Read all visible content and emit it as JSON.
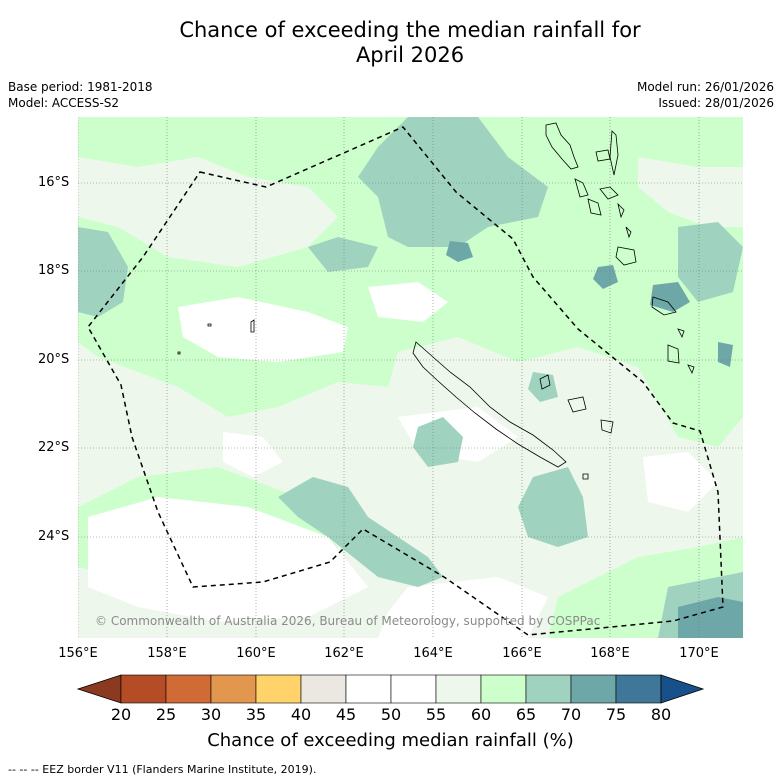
{
  "title_line1": "Chance of exceeding the median rainfall for",
  "title_line2": "April 2026",
  "base_period": "Base period: 1981-2018",
  "model": "Model: ACCESS-S2",
  "model_run": "Model run: 26/01/2026",
  "issued": "Issued: 28/01/2026",
  "lat_labels": [
    "16°S",
    "18°S",
    "20°S",
    "22°S",
    "24°S"
  ],
  "lon_labels": [
    "156°E",
    "158°E",
    "160°E",
    "162°E",
    "164°E",
    "166°E",
    "168°E",
    "170°E"
  ],
  "copyright": "© Commonwealth of Australia 2026, Bureau of Meteorology, supported by COSPPac",
  "colorbar": {
    "ticks": [
      "20",
      "25",
      "30",
      "35",
      "40",
      "45",
      "50",
      "55",
      "60",
      "65",
      "70",
      "75",
      "80"
    ],
    "colors": [
      "#8b3a1f",
      "#b54c26",
      "#d16b35",
      "#e3964e",
      "#ffd36a",
      "#ebe8e2",
      "#ffffff",
      "#ffffff",
      "#eef7ec",
      "#ccffcc",
      "#9fd3bf",
      "#6ea7a7",
      "#3f7799",
      "#17508a"
    ],
    "title": "Chance of exceeding median rainfall (%)"
  },
  "legend_note": "--  --  -- EEZ border V11 (Flanders Marine Institute, 2019)."
}
